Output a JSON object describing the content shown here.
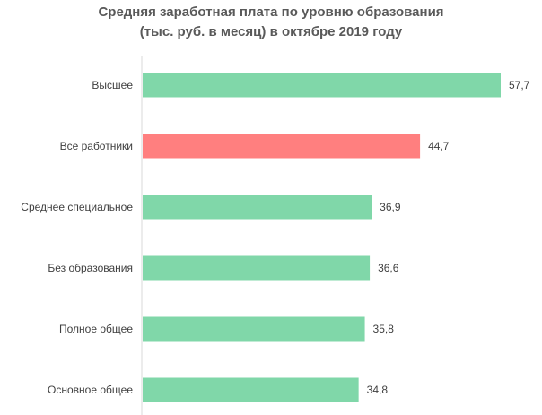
{
  "chart_data": {
    "type": "bar",
    "orientation": "horizontal",
    "title": "Средняя заработная плата по уровню образования (тыс. руб. в месяц) в октябре 2019 году",
    "title_lines": [
      "Средняя заработная плата по уровню образования",
      "(тыс. руб. в месяц) в октябре 2019 году"
    ],
    "categories": [
      "Высшее",
      "Все работники",
      "Среднее специальное",
      "Без образования",
      "Полное общее",
      "Основное общее"
    ],
    "values": [
      57.7,
      44.7,
      36.9,
      36.6,
      35.8,
      34.8
    ],
    "value_labels": [
      "57,7",
      "44,7",
      "36,9",
      "36,6",
      "35,8",
      "34,8"
    ],
    "highlight_index": 1,
    "xlabel": "",
    "ylabel": "",
    "xlim": [
      0,
      57.7
    ],
    "grid": false,
    "legend": "none"
  },
  "colors": {
    "bar": "#80d7a9",
    "highlight": "#ff7f7f",
    "text": "#404040",
    "title": "#595959",
    "axis": "#d9d9d9"
  }
}
